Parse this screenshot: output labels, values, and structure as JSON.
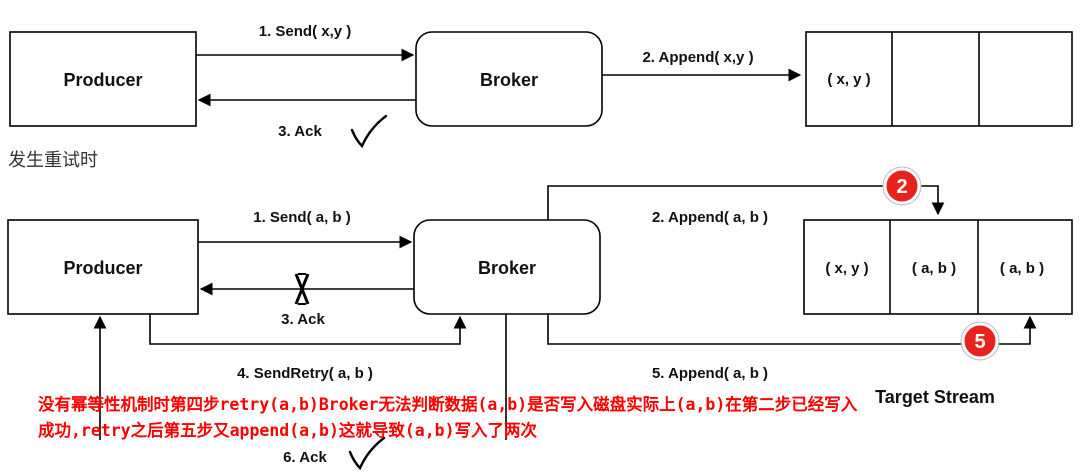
{
  "top": {
    "producer": "Producer",
    "broker": "Broker",
    "send": "1. Send( x,y )",
    "append": "2. Append( x,y )",
    "ack": "3. Ack",
    "stream_cells": [
      "( x, y )",
      "",
      ""
    ]
  },
  "section_title": "发生重试时",
  "bottom": {
    "producer": "Producer",
    "broker": "Broker",
    "send": "1. Send( a, b )",
    "append": "2. Append( a, b )",
    "ack": "3. Ack",
    "send_retry": "4. SendRetry( a, b )",
    "append_retry": "5. Append( a, b )",
    "ack_retry": "6. Ack",
    "stream_cells": [
      "( x, y )",
      "( a, b )",
      "( a, b )"
    ],
    "stream_label": "Target Stream",
    "badge_2": "2",
    "badge_5": "5"
  },
  "note": "没有幂等性机制时第四步retry(a,b)Broker无法判断数据(a,b)是否写入磁盘实际上(a,b)在第二步已经写入成功,retry之后第五步又append(a,b)这就导致(a,b)写入了两次",
  "colors": {
    "note": "#ff0000",
    "badge": "#e8231e"
  }
}
